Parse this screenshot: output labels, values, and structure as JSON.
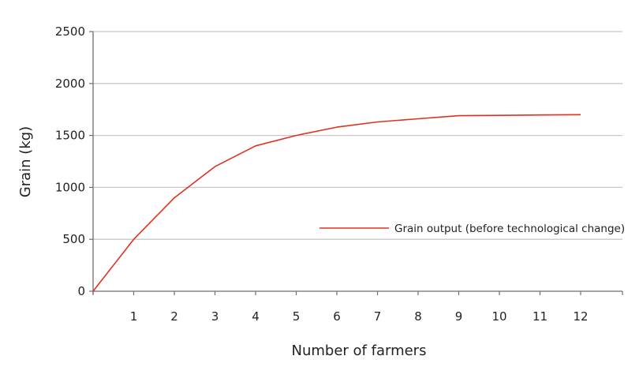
{
  "chart_data": {
    "type": "line",
    "title": "",
    "xlabel": "Number of farmers",
    "ylabel": "Grain (kg)",
    "x": [
      0,
      1,
      2,
      3,
      4,
      5,
      6,
      7,
      8,
      9,
      10,
      11,
      12
    ],
    "series": [
      {
        "name": "Grain output (before technological change)",
        "color": "#e0301e",
        "values": [
          0,
          500,
          900,
          1200,
          1400,
          1500,
          1580,
          1630,
          1660,
          1690,
          1693,
          1697,
          1700
        ]
      }
    ],
    "xticks": [
      "1",
      "2",
      "3",
      "4",
      "5",
      "6",
      "7",
      "8",
      "9",
      "10",
      "11",
      "12"
    ],
    "yticks": [
      "0",
      "500",
      "1000",
      "1500",
      "2000",
      "2500"
    ],
    "xlim": [
      0,
      13
    ],
    "ylim": [
      0,
      2500
    ],
    "grid": "horizontal",
    "legend_position": "inside-right-middle"
  },
  "colors": {
    "line": "#e0301e",
    "grid": "#c8c8c8",
    "axis": "#6e6e6e",
    "text": "#222222"
  }
}
